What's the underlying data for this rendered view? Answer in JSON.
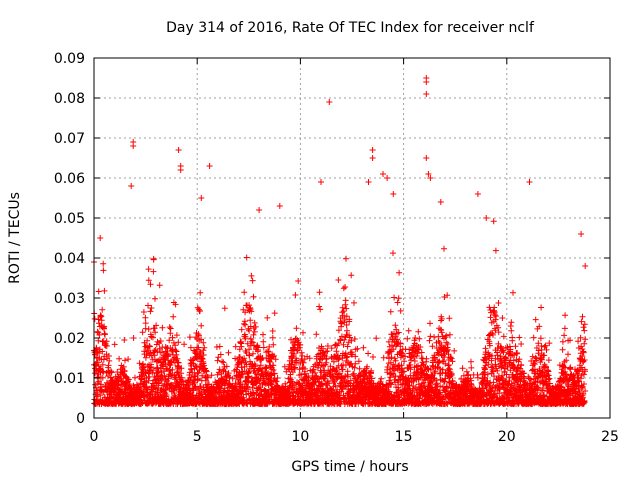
{
  "chart_data": {
    "type": "scatter",
    "title": "Day 314 of 2016, Rate Of TEC Index for receiver nclf",
    "xlabel": "GPS time / hours",
    "ylabel": "ROTI / TECUs",
    "xlim": [
      0,
      25
    ],
    "ylim": [
      0,
      0.09
    ],
    "x_ticks": [
      0,
      5,
      10,
      15,
      20,
      25
    ],
    "x_tick_labels": [
      "0",
      "5",
      "10",
      "15",
      "20",
      "25"
    ],
    "y_ticks": [
      0,
      0.01,
      0.02,
      0.03,
      0.04,
      0.05,
      0.06,
      0.07,
      0.08,
      0.09
    ],
    "y_tick_labels": [
      "0",
      "0.01",
      "0.02",
      "0.03",
      "0.04",
      "0.05",
      "0.06",
      "0.07",
      "0.08",
      "0.09"
    ],
    "grid": true,
    "marker": "+",
    "marker_color": "#ff0000",
    "data_x_range": [
      0,
      23.8
    ],
    "series": [
      {
        "name": "ROTI",
        "note": "dense cloud of ~5000 points; bulk 0.003-0.02, spikes to ~0.045-0.05; representative outliers listed",
        "outliers": [
          {
            "x": 1.9,
            "y": 0.069
          },
          {
            "x": 1.9,
            "y": 0.068
          },
          {
            "x": 1.8,
            "y": 0.058
          },
          {
            "x": 4.1,
            "y": 0.067
          },
          {
            "x": 4.2,
            "y": 0.063
          },
          {
            "x": 4.2,
            "y": 0.062
          },
          {
            "x": 5.6,
            "y": 0.063
          },
          {
            "x": 5.2,
            "y": 0.055
          },
          {
            "x": 11.4,
            "y": 0.079
          },
          {
            "x": 11.0,
            "y": 0.059
          },
          {
            "x": 13.5,
            "y": 0.067
          },
          {
            "x": 13.5,
            "y": 0.065
          },
          {
            "x": 13.3,
            "y": 0.059
          },
          {
            "x": 14.0,
            "y": 0.061
          },
          {
            "x": 14.2,
            "y": 0.06
          },
          {
            "x": 14.5,
            "y": 0.056
          },
          {
            "x": 16.1,
            "y": 0.085
          },
          {
            "x": 16.1,
            "y": 0.084
          },
          {
            "x": 16.1,
            "y": 0.081
          },
          {
            "x": 16.1,
            "y": 0.065
          },
          {
            "x": 16.2,
            "y": 0.061
          },
          {
            "x": 16.3,
            "y": 0.06
          },
          {
            "x": 16.8,
            "y": 0.054
          },
          {
            "x": 18.6,
            "y": 0.056
          },
          {
            "x": 21.1,
            "y": 0.059
          },
          {
            "x": 19.0,
            "y": 0.05
          },
          {
            "x": 9.0,
            "y": 0.053
          },
          {
            "x": 8.0,
            "y": 0.052
          },
          {
            "x": 0.3,
            "y": 0.045
          },
          {
            "x": 0.0,
            "y": 0.039
          },
          {
            "x": 23.6,
            "y": 0.046
          },
          {
            "x": 23.8,
            "y": 0.038
          }
        ]
      }
    ]
  }
}
